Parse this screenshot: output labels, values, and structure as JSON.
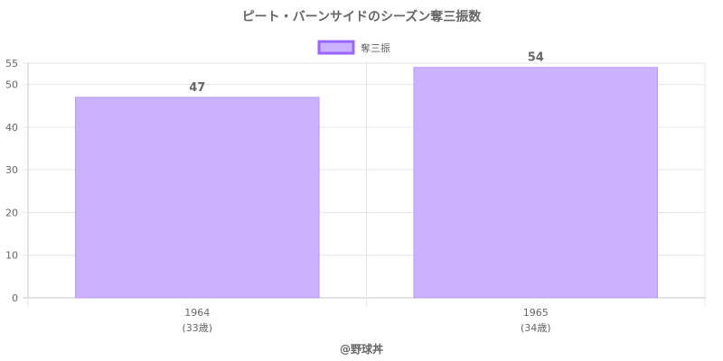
{
  "chart_data": {
    "type": "bar",
    "title": "ピート・バーンサイドのシーズン奪三振数",
    "categories": [
      "1964",
      "1965"
    ],
    "category_sublabels": [
      "(33歳)",
      "(34歳)"
    ],
    "series": [
      {
        "name": "奪三振",
        "values": [
          47,
          54
        ]
      }
    ],
    "data_labels": [
      "47",
      "54"
    ],
    "y_ticks": [
      0,
      10,
      20,
      30,
      40,
      50,
      55
    ],
    "ylim": [
      0,
      55
    ],
    "xlabel": "",
    "ylabel": "",
    "grid": true,
    "legend": "top-center",
    "colors": {
      "bar_fill": "#cbb2ff",
      "bar_stroke": "#b999ff",
      "legend_stroke": "#9966ff",
      "grid": "#e6e6e6",
      "axis": "#c8c8c8",
      "text": "#666666"
    }
  },
  "footer": {
    "credit": "@野球丼"
  }
}
